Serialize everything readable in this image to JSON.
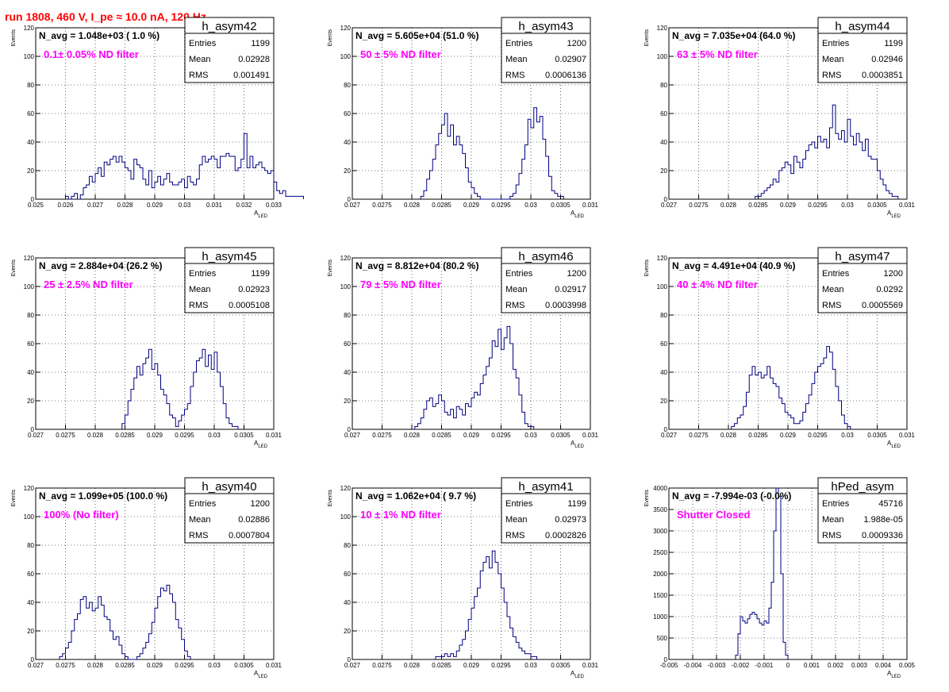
{
  "page_title": "run 1808,   460 V, I_pe ≈ 10.0 nA, 120 Hz",
  "colors": {
    "title": "#ff0000",
    "annotation": "#ff00ff",
    "histogram": "#000080",
    "grid": "#000000"
  },
  "stats_labels": {
    "entries": "Entries",
    "mean": "Mean",
    "rms": "RMS"
  },
  "ylabel": "Events",
  "xlabel_main": "A",
  "xlabel_sub": "LED",
  "chart_data": [
    {
      "type": "bar",
      "name": "h_asym42",
      "navg": "N_avg = 1.048e+03 ( 1.0 %)",
      "annotation": "0.1± 0.05% ND filter",
      "stats": {
        "entries": "1199",
        "mean": "0.02928",
        "rms": "0.001491"
      },
      "xlim": [
        0.025,
        0.033
      ],
      "ylim": [
        0,
        120
      ],
      "xticks": [
        "0.025",
        "0.026",
        "0.027",
        "0.028",
        "0.029",
        "0.03",
        "0.031",
        "0.032",
        "0.033"
      ],
      "yticks": [
        "0",
        "20",
        "40",
        "60",
        "80",
        "100",
        "120"
      ],
      "x_start": 0.026,
      "bin_width": 0.0001,
      "values": [
        2,
        0,
        2,
        4,
        0,
        3,
        8,
        10,
        16,
        12,
        18,
        22,
        16,
        26,
        24,
        28,
        30,
        26,
        30,
        26,
        22,
        20,
        14,
        28,
        24,
        22,
        14,
        10,
        20,
        8,
        12,
        16,
        10,
        14,
        18,
        12,
        10,
        10,
        12,
        14,
        8,
        16,
        12,
        10,
        14,
        24,
        30,
        26,
        28,
        30,
        28,
        22,
        30,
        30,
        32,
        30,
        30,
        20,
        22,
        28,
        46,
        22,
        30,
        22,
        24,
        26,
        22,
        20,
        18,
        20,
        12,
        6,
        4,
        6,
        2,
        2,
        2,
        2,
        2,
        2
      ]
    },
    {
      "type": "bar",
      "name": "h_asym43",
      "navg": "N_avg = 5.605e+04 (51.0 %)",
      "annotation": "50 ± 5% ND filter",
      "stats": {
        "entries": "1200",
        "mean": "0.02907",
        "rms": "0.0006136"
      },
      "xlim": [
        0.027,
        0.031
      ],
      "ylim": [
        0,
        120
      ],
      "xticks": [
        "0.027",
        "0.0275",
        "0.028",
        "0.0285",
        "0.029",
        "0.0295",
        "0.03",
        "0.0305",
        "0.031"
      ],
      "yticks": [
        "0",
        "20",
        "40",
        "60",
        "80",
        "100",
        "120"
      ],
      "x_start": 0.02815,
      "bin_width": 5e-05,
      "values": [
        2,
        6,
        14,
        20,
        28,
        38,
        46,
        52,
        60,
        44,
        52,
        38,
        44,
        38,
        32,
        22,
        12,
        8,
        4,
        2,
        0,
        0,
        0,
        0,
        0,
        0,
        0,
        0,
        0,
        0,
        2,
        4,
        10,
        18,
        28,
        38,
        56,
        50,
        64,
        54,
        58,
        42,
        30,
        16,
        6,
        4,
        2,
        2
      ]
    },
    {
      "type": "bar",
      "name": "h_asym44",
      "navg": "N_avg = 7.035e+04 (64.0 %)",
      "annotation": "63 ± 5% ND filter",
      "stats": {
        "entries": "1199",
        "mean": "0.02946",
        "rms": "0.0003851"
      },
      "xlim": [
        0.027,
        0.031
      ],
      "ylim": [
        0,
        120
      ],
      "xticks": [
        "0.027",
        "0.0275",
        "0.028",
        "0.0285",
        "0.029",
        "0.0295",
        "0.03",
        "0.0305",
        "0.031"
      ],
      "yticks": [
        "0",
        "20",
        "40",
        "60",
        "80",
        "100",
        "120"
      ],
      "x_start": 0.02845,
      "bin_width": 5e-05,
      "values": [
        2,
        2,
        4,
        6,
        8,
        10,
        14,
        12,
        20,
        22,
        26,
        24,
        18,
        30,
        26,
        22,
        28,
        34,
        38,
        40,
        36,
        44,
        40,
        42,
        36,
        50,
        66,
        46,
        42,
        48,
        40,
        56,
        44,
        38,
        46,
        40,
        34,
        42,
        30,
        28,
        28,
        20,
        14,
        10,
        6,
        4,
        2,
        2
      ]
    },
    {
      "type": "bar",
      "name": "h_asym45",
      "navg": "N_avg = 2.884e+04 (26.2 %)",
      "annotation": "25 ± 2.5% ND filter",
      "stats": {
        "entries": "1199",
        "mean": "0.02923",
        "rms": "0.0005108"
      },
      "xlim": [
        0.027,
        0.031
      ],
      "ylim": [
        0,
        120
      ],
      "xticks": [
        "0.027",
        "0.0275",
        "0.028",
        "0.0285",
        "0.029",
        "0.0295",
        "0.03",
        "0.0305",
        "0.031"
      ],
      "yticks": [
        "0",
        "20",
        "40",
        "60",
        "80",
        "100",
        "120"
      ],
      "x_start": 0.02845,
      "bin_width": 5e-05,
      "values": [
        4,
        10,
        20,
        28,
        36,
        44,
        38,
        46,
        50,
        56,
        42,
        46,
        38,
        28,
        24,
        18,
        10,
        8,
        2,
        6,
        10,
        14,
        18,
        30,
        40,
        48,
        50,
        56,
        44,
        52,
        42,
        54,
        40,
        30,
        18,
        8,
        4,
        2,
        2
      ]
    },
    {
      "type": "bar",
      "name": "h_asym46",
      "navg": "N_avg = 8.812e+04 (80.2 %)",
      "annotation": "79 ± 5% ND filter",
      "stats": {
        "entries": "1200",
        "mean": "0.02917",
        "rms": "0.0003998"
      },
      "xlim": [
        0.027,
        0.031
      ],
      "ylim": [
        0,
        120
      ],
      "xticks": [
        "0.027",
        "0.0275",
        "0.028",
        "0.0285",
        "0.029",
        "0.0295",
        "0.03",
        "0.0305",
        "0.031"
      ],
      "yticks": [
        "0",
        "20",
        "40",
        "60",
        "80",
        "100",
        "120"
      ],
      "x_start": 0.02805,
      "bin_width": 5e-05,
      "values": [
        2,
        4,
        8,
        14,
        20,
        22,
        16,
        18,
        24,
        20,
        12,
        10,
        14,
        8,
        16,
        14,
        10,
        18,
        16,
        22,
        26,
        24,
        32,
        38,
        44,
        50,
        62,
        58,
        70,
        56,
        64,
        72,
        60,
        42,
        36,
        24,
        12,
        4,
        2,
        2
      ]
    },
    {
      "type": "bar",
      "name": "h_asym47",
      "navg": "N_avg = 4.491e+04 (40.9 %)",
      "annotation": "40 ± 4% ND filter",
      "stats": {
        "entries": "1200",
        "mean": "0.0292",
        "rms": "0.0005569"
      },
      "xlim": [
        0.027,
        0.031
      ],
      "ylim": [
        0,
        120
      ],
      "xticks": [
        "0.027",
        "0.0275",
        "0.028",
        "0.0285",
        "0.029",
        "0.0295",
        "0.03",
        "0.0305",
        "0.031"
      ],
      "yticks": [
        "0",
        "20",
        "40",
        "60",
        "80",
        "100",
        "120"
      ],
      "x_start": 0.02805,
      "bin_width": 5e-05,
      "values": [
        2,
        4,
        8,
        10,
        16,
        26,
        38,
        44,
        38,
        40,
        36,
        38,
        44,
        36,
        32,
        30,
        22,
        18,
        12,
        10,
        8,
        4,
        4,
        6,
        12,
        18,
        24,
        32,
        40,
        44,
        46,
        50,
        58,
        54,
        42,
        30,
        20,
        10,
        4,
        2
      ]
    },
    {
      "type": "bar",
      "name": "h_asym40",
      "navg": "N_avg = 1.099e+05 (100.0 %)",
      "annotation": "100% (No filter)",
      "stats": {
        "entries": "1200",
        "mean": "0.02886",
        "rms": "0.0007804"
      },
      "xlim": [
        0.027,
        0.031
      ],
      "ylim": [
        0,
        120
      ],
      "xticks": [
        "0.027",
        "0.0275",
        "0.028",
        "0.0285",
        "0.029",
        "0.0295",
        "0.03",
        "0.0305",
        "0.031"
      ],
      "yticks": [
        "0",
        "20",
        "40",
        "60",
        "80",
        "100",
        "120"
      ],
      "x_start": 0.0274,
      "bin_width": 5e-05,
      "values": [
        2,
        4,
        8,
        12,
        20,
        28,
        32,
        42,
        44,
        36,
        40,
        34,
        36,
        44,
        38,
        30,
        28,
        20,
        14,
        16,
        10,
        4,
        2,
        0,
        0,
        0,
        2,
        4,
        8,
        12,
        18,
        26,
        36,
        44,
        50,
        48,
        52,
        46,
        40,
        28,
        22,
        14,
        6,
        2
      ]
    },
    {
      "type": "bar",
      "name": "h_asym41",
      "navg": "N_avg = 1.062e+04 ( 9.7 %)",
      "annotation": "10 ± 1% ND filter",
      "stats": {
        "entries": "1199",
        "mean": "0.02973",
        "rms": "0.0002826"
      },
      "xlim": [
        0.027,
        0.031
      ],
      "ylim": [
        0,
        120
      ],
      "xticks": [
        "0.027",
        "0.0275",
        "0.028",
        "0.0285",
        "0.029",
        "0.0295",
        "0.03",
        "0.0305",
        "0.031"
      ],
      "yticks": [
        "0",
        "20",
        "40",
        "60",
        "80",
        "100",
        "120"
      ],
      "x_start": 0.0284,
      "bin_width": 5e-05,
      "values": [
        2,
        2,
        2,
        4,
        2,
        4,
        2,
        6,
        10,
        14,
        20,
        28,
        36,
        44,
        50,
        62,
        68,
        72,
        64,
        76,
        68,
        60,
        50,
        40,
        30,
        22,
        16,
        12,
        8,
        6,
        4,
        4,
        2,
        2
      ]
    },
    {
      "type": "bar",
      "name": "hPed_asym",
      "navg": "N_avg = -7.994e-03 (-0.0%)",
      "annotation": "Shutter Closed",
      "stats": {
        "entries": "45716",
        "mean": "1.988e-05",
        "rms": "0.0009336"
      },
      "xlim": [
        -0.005,
        0.005
      ],
      "ylim": [
        0,
        4000
      ],
      "xticks": [
        "-0.005",
        "-0.004",
        "-0.003",
        "-0.002",
        "-0.001",
        "0",
        "0.001",
        "0.002",
        "0.003",
        "0.004",
        "0.005"
      ],
      "yticks": [
        "0",
        "500",
        "1000",
        "1500",
        "2000",
        "2500",
        "3000",
        "3500",
        "4000"
      ],
      "x_start": -0.0022,
      "bin_width": 0.0001,
      "values": [
        100,
        600,
        1000,
        900,
        850,
        950,
        1050,
        1100,
        1050,
        950,
        850,
        800,
        900,
        850,
        1200,
        1800,
        3000,
        4000,
        3800,
        2000,
        400,
        100
      ]
    }
  ]
}
